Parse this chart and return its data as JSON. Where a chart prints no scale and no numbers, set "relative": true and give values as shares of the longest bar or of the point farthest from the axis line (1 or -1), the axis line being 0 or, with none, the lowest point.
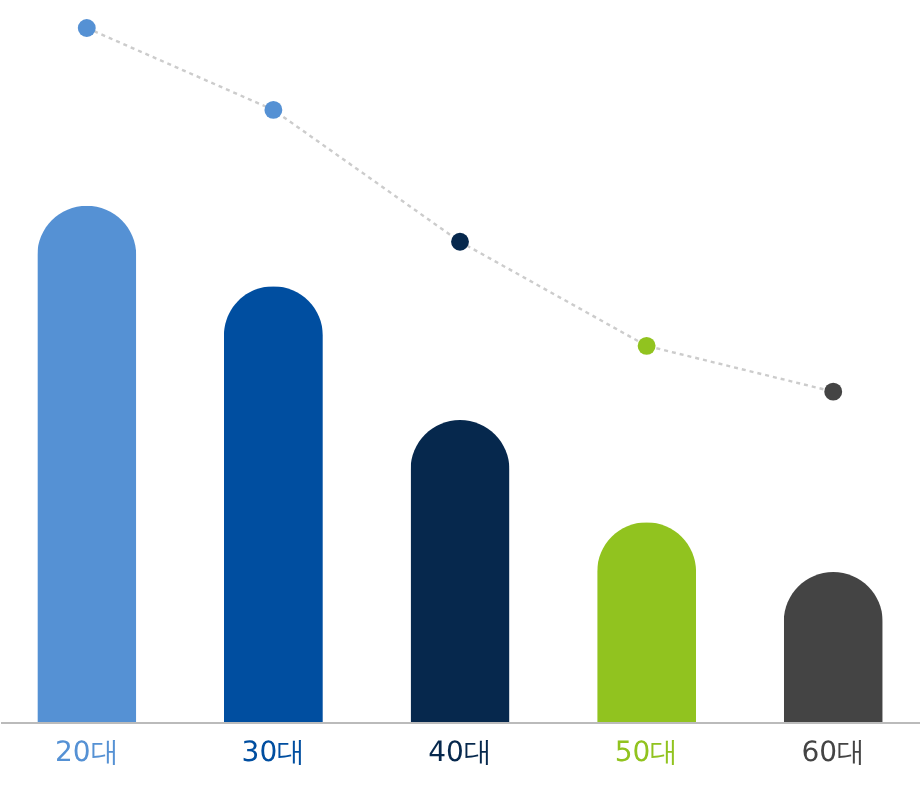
{
  "chart_data": {
    "type": "bar",
    "relative": true,
    "categories": [
      "20대",
      "30대",
      "40대",
      "50대",
      "60대"
    ],
    "series": [
      {
        "colors": [
          "#5591d4",
          "#004ea0",
          "#06284d",
          "#91c31f",
          "#444444"
        ],
        "values": [
          0.744,
          0.628,
          0.435,
          0.288,
          0.216
        ]
      },
      {
        "type": "line",
        "color": "#cccccc",
        "colors": [
          "#5591d4",
          "#5591d4",
          "#06284d",
          "#91c31f",
          "#444444"
        ],
        "values": [
          1,
          0.882,
          0.692,
          0.542,
          0.476
        ]
      }
    ],
    "line_style": "dotted",
    "marker": "circle"
  }
}
